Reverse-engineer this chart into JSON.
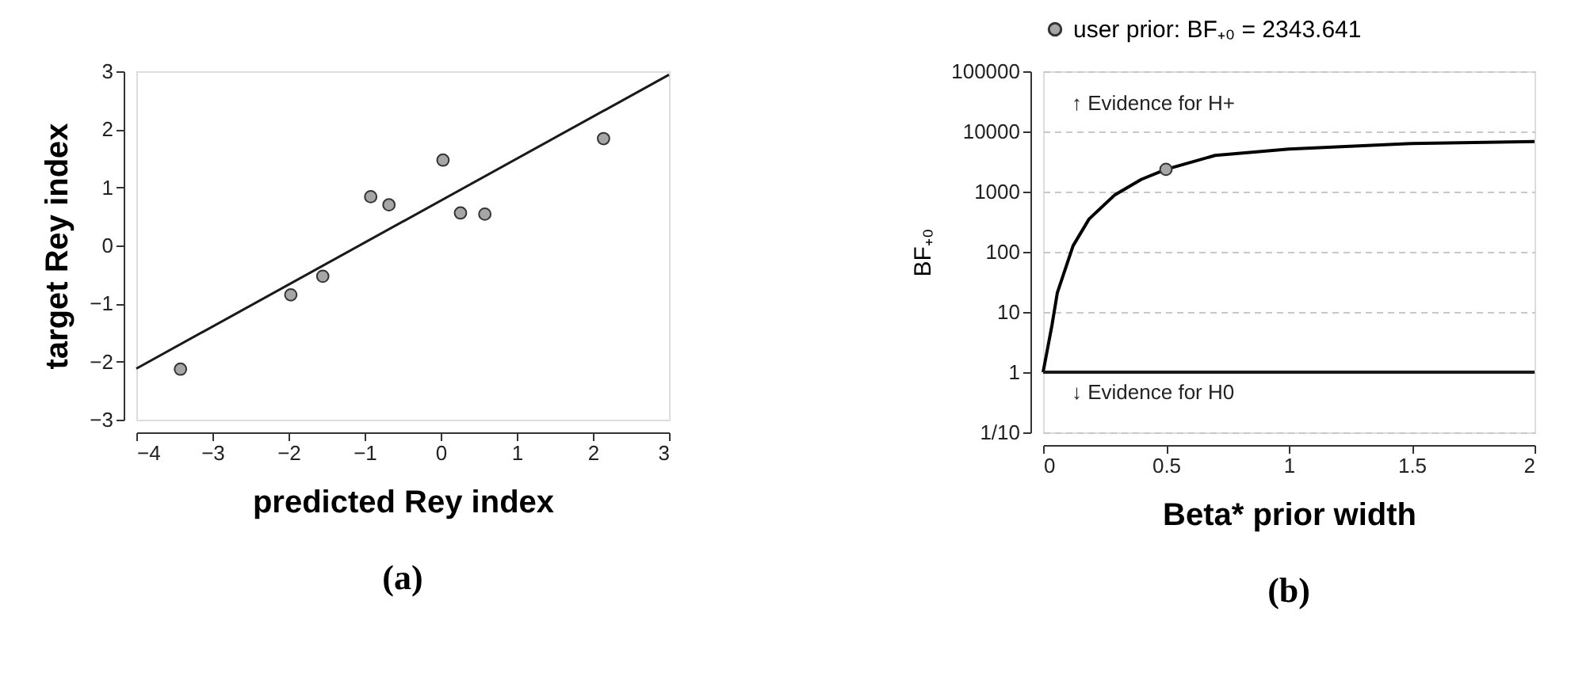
{
  "chart_data": [
    {
      "type": "scatter",
      "title": "(a)",
      "xlabel": "predicted Rey index",
      "ylabel": "target Rey index",
      "xlim": [
        -4,
        3
      ],
      "xticks": [
        -4,
        -3,
        -2,
        -1,
        0,
        1,
        2,
        3
      ],
      "ylim": [
        -3,
        3
      ],
      "yticks": [
        -3,
        -2,
        -1,
        0,
        1,
        2,
        3
      ],
      "series": [
        {
          "marker": "circle",
          "color": "#a6a6a6",
          "x": [
            -3.42,
            -1.97,
            -1.55,
            -0.92,
            -0.68,
            0.03,
            0.26,
            0.58,
            2.14
          ],
          "values": [
            -2.13,
            -0.85,
            -0.53,
            0.84,
            0.7,
            1.47,
            0.56,
            0.54,
            1.84
          ]
        },
        {
          "type": "line",
          "marker": "none",
          "line_style": "solid",
          "color": "#1a1a1a",
          "x": [
            -4,
            3
          ],
          "values": [
            -2.12,
            2.94
          ]
        }
      ]
    },
    {
      "type": "line",
      "title": "(b)",
      "xlabel": "Beta* prior width",
      "ylabel": "BF₊₀",
      "log": "y",
      "grid": "y",
      "legend": "top",
      "xlim": [
        0,
        2
      ],
      "xticks": [
        0,
        0.5,
        1,
        1.5,
        2
      ],
      "ylim": [
        0.1,
        100000
      ],
      "yticks": [
        {
          "value": 0.1,
          "label": "1/10"
        },
        1,
        10,
        100,
        1000,
        10000,
        100000
      ],
      "ref_lines": [
        {
          "axis": "y",
          "value": 1,
          "color": "#1a1a1a",
          "line_style": "solid"
        }
      ],
      "annotations": [
        "↑ Evidence for H+",
        "↓ Evidence for H0"
      ],
      "series": [
        {
          "marker": "none",
          "line_style": "solid",
          "color": "#000000",
          "x": [
            0,
            0.036,
            0.058,
            0.122,
            0.187,
            0.29,
            0.4,
            0.5,
            0.7,
            1.0,
            1.5,
            2.0
          ],
          "values": [
            1,
            6,
            21,
            126,
            350,
            870,
            1600,
            2343.641,
            4000,
            5100,
            6300,
            6800
          ]
        },
        {
          "type": "scatter",
          "marker": "circle",
          "name": "user prior:  BF₊₀ = 2343.641",
          "color": "#a6a6a6",
          "x": [
            0.5
          ],
          "values": [
            2343.641
          ]
        }
      ]
    }
  ]
}
